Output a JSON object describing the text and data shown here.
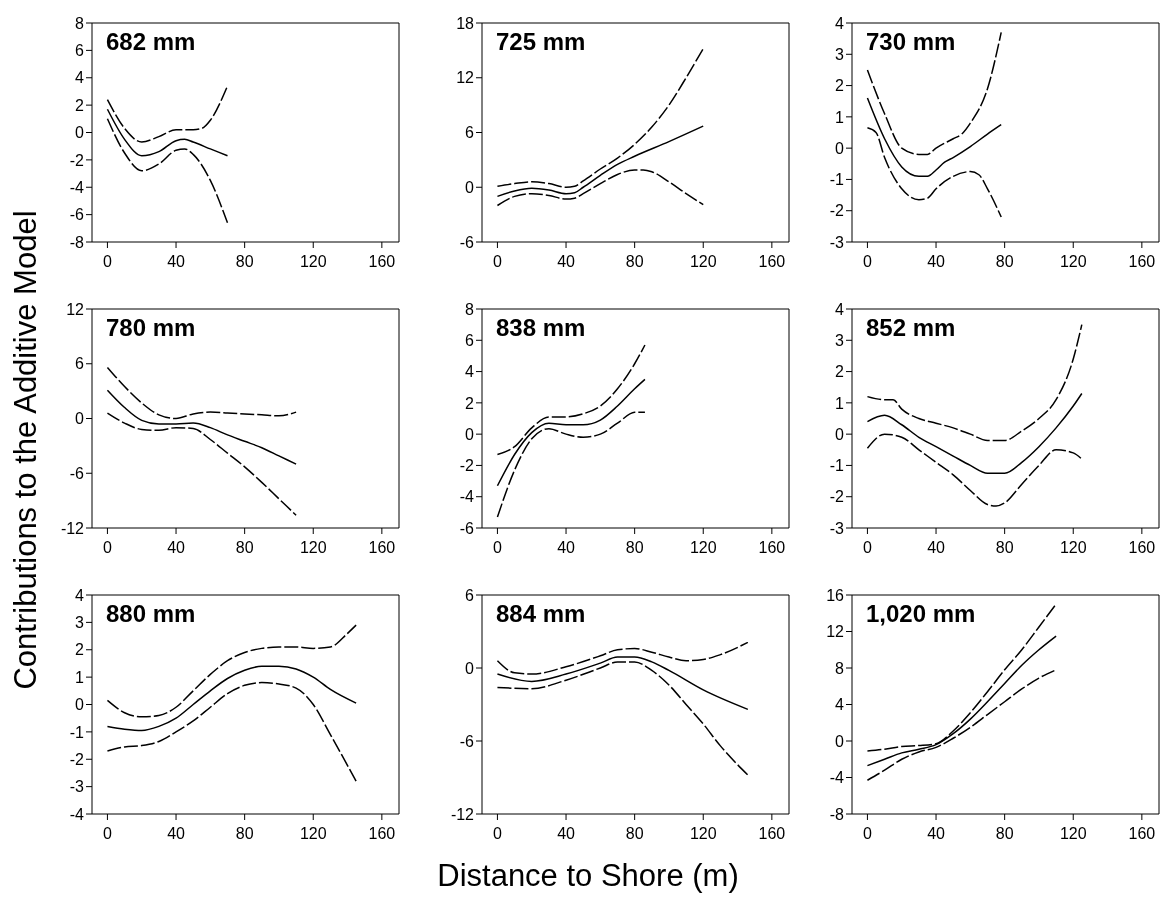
{
  "chart_data": [
    {
      "type": "line",
      "title": "682 mm",
      "xlim": [
        -9,
        170
      ],
      "xticks": [
        0,
        40,
        80,
        120,
        160
      ],
      "ylim": [
        -8,
        8
      ],
      "yticks": [
        -8,
        -6,
        -4,
        -2,
        0,
        2,
        4,
        6,
        8
      ],
      "series": [
        {
          "color": "#000000",
          "line_style": "solid",
          "x": [
            0,
            10,
            20,
            30,
            40,
            45,
            50,
            60,
            70
          ],
          "values": [
            1.7,
            -0.5,
            -1.7,
            -1.4,
            -0.6,
            -0.5,
            -0.7,
            -1.2,
            -1.7
          ]
        },
        {
          "color": "#000000",
          "line_style": "dashed",
          "x": [
            0,
            10,
            20,
            30,
            40,
            50,
            55,
            60,
            70
          ],
          "values": [
            2.4,
            0.3,
            -0.7,
            -0.3,
            0.2,
            0.2,
            0.3,
            0.9,
            3.4
          ]
        },
        {
          "color": "#000000",
          "line_style": "dashed",
          "x": [
            0,
            10,
            20,
            30,
            40,
            45,
            50,
            60,
            70
          ],
          "values": [
            1.0,
            -1.5,
            -2.8,
            -2.3,
            -1.3,
            -1.2,
            -1.6,
            -3.5,
            -6.6
          ]
        }
      ]
    },
    {
      "type": "line",
      "title": "725 mm",
      "xlim": [
        -9,
        170
      ],
      "xticks": [
        0,
        40,
        80,
        120,
        160
      ],
      "ylim": [
        -6,
        18
      ],
      "yticks": [
        -6,
        0,
        6,
        12,
        18
      ],
      "series": [
        {
          "color": "#000000",
          "line_style": "solid",
          "x": [
            0,
            10,
            20,
            30,
            40,
            45,
            50,
            60,
            70,
            80,
            100,
            120
          ],
          "values": [
            -1,
            -0.4,
            -0.1,
            -0.3,
            -0.7,
            -0.6,
            0,
            1.3,
            2.5,
            3.4,
            5,
            6.7
          ]
        },
        {
          "color": "#000000",
          "line_style": "dashed",
          "x": [
            0,
            10,
            20,
            30,
            40,
            45,
            50,
            60,
            70,
            80,
            90,
            100,
            110,
            120
          ],
          "values": [
            0.1,
            0.4,
            0.6,
            0.4,
            0,
            0.1,
            0.7,
            2,
            3.2,
            4.7,
            6.6,
            9,
            12,
            15.2
          ]
        },
        {
          "color": "#000000",
          "line_style": "dashed",
          "x": [
            0,
            10,
            20,
            30,
            40,
            45,
            50,
            60,
            70,
            80,
            85,
            90,
            100,
            110,
            120
          ],
          "values": [
            -2,
            -1,
            -0.7,
            -0.9,
            -1.3,
            -1.2,
            -0.7,
            0.4,
            1.4,
            1.9,
            1.9,
            1.7,
            0.6,
            -0.7,
            -1.9
          ]
        }
      ]
    },
    {
      "type": "line",
      "title": "730 mm",
      "xlim": [
        -9,
        170
      ],
      "xticks": [
        0,
        40,
        80,
        120,
        160
      ],
      "ylim": [
        -3,
        4
      ],
      "yticks": [
        -3,
        -2,
        -1,
        0,
        1,
        2,
        3,
        4
      ],
      "series": [
        {
          "color": "#000000",
          "line_style": "solid",
          "x": [
            0,
            10,
            20,
            30,
            35,
            40,
            45,
            50,
            60,
            70,
            78
          ],
          "values": [
            1.6,
            0.3,
            -0.6,
            -0.9,
            -0.9,
            -0.7,
            -0.45,
            -0.3,
            0.05,
            0.45,
            0.75
          ]
        },
        {
          "color": "#000000",
          "line_style": "dashed",
          "x": [
            0,
            10,
            20,
            30,
            35,
            40,
            50,
            55,
            60,
            70,
            78
          ],
          "values": [
            2.5,
            1.1,
            0,
            -0.2,
            -0.2,
            0,
            0.3,
            0.45,
            0.8,
            1.9,
            3.7
          ]
        },
        {
          "color": "#000000",
          "line_style": "dashed",
          "x": [
            0,
            5,
            10,
            20,
            30,
            35,
            40,
            50,
            60,
            65,
            70,
            78
          ],
          "values": [
            0.65,
            0.5,
            -0.3,
            -1.3,
            -1.65,
            -1.6,
            -1.3,
            -0.9,
            -0.75,
            -0.85,
            -1.3,
            -2.2
          ]
        }
      ]
    },
    {
      "type": "line",
      "title": "780 mm",
      "ylabel": "Contributions to the Additive Model",
      "xlim": [
        -9,
        170
      ],
      "xticks": [
        0,
        40,
        80,
        120,
        160
      ],
      "ylim": [
        -12,
        12
      ],
      "yticks": [
        -12,
        -6,
        0,
        6,
        12
      ],
      "series": [
        {
          "color": "#000000",
          "line_style": "solid",
          "x": [
            0,
            10,
            20,
            30,
            40,
            50,
            60,
            70,
            80,
            90,
            100,
            110
          ],
          "values": [
            3.1,
            1.2,
            -0.2,
            -0.6,
            -0.6,
            -0.5,
            -1,
            -1.8,
            -2.5,
            -3.2,
            -4.1,
            -5
          ]
        },
        {
          "color": "#000000",
          "line_style": "dashed",
          "x": [
            0,
            10,
            20,
            30,
            40,
            50,
            60,
            70,
            80,
            90,
            100,
            110
          ],
          "values": [
            5.6,
            3.5,
            1.7,
            0.4,
            0,
            0.5,
            0.7,
            0.6,
            0.5,
            0.4,
            0.3,
            0.7
          ]
        },
        {
          "color": "#000000",
          "line_style": "dashed",
          "x": [
            0,
            10,
            20,
            30,
            40,
            50,
            60,
            70,
            80,
            90,
            100,
            110
          ],
          "values": [
            0.6,
            -0.5,
            -1.2,
            -1.3,
            -1,
            -1.1,
            -2.3,
            -3.8,
            -5.3,
            -7,
            -8.8,
            -10.6
          ]
        }
      ]
    },
    {
      "type": "line",
      "title": "838 mm",
      "xlim": [
        -9,
        170
      ],
      "xticks": [
        0,
        40,
        80,
        120,
        160
      ],
      "ylim": [
        -6,
        8
      ],
      "yticks": [
        -6,
        -4,
        -2,
        0,
        2,
        4,
        6,
        8
      ],
      "series": [
        {
          "color": "#000000",
          "line_style": "solid",
          "x": [
            0,
            10,
            20,
            30,
            40,
            50,
            60,
            70,
            80,
            86
          ],
          "values": [
            -3.3,
            -1.3,
            0.1,
            0.7,
            0.6,
            0.6,
            0.9,
            1.8,
            2.9,
            3.5
          ]
        },
        {
          "color": "#000000",
          "line_style": "dashed",
          "x": [
            0,
            10,
            20,
            30,
            40,
            50,
            60,
            70,
            80,
            86
          ],
          "values": [
            -1.3,
            -0.8,
            0.4,
            1.1,
            1.1,
            1.3,
            1.8,
            2.9,
            4.5,
            5.7
          ]
        },
        {
          "color": "#000000",
          "line_style": "dashed",
          "x": [
            0,
            10,
            20,
            30,
            40,
            50,
            60,
            70,
            80,
            86
          ],
          "values": [
            -5.3,
            -2.3,
            -0.3,
            0.35,
            0,
            -0.2,
            0,
            0.7,
            1.4,
            1.4
          ]
        }
      ]
    },
    {
      "type": "line",
      "title": "852 mm",
      "xlim": [
        -9,
        170
      ],
      "xticks": [
        0,
        40,
        80,
        120,
        160
      ],
      "ylim": [
        -3,
        4
      ],
      "yticks": [
        -3,
        -2,
        -1,
        0,
        1,
        2,
        3,
        4
      ],
      "series": [
        {
          "color": "#000000",
          "line_style": "solid",
          "x": [
            0,
            10,
            20,
            30,
            40,
            50,
            60,
            70,
            80,
            90,
            100,
            110,
            120,
            125
          ],
          "values": [
            0.4,
            0.6,
            0.3,
            -0.1,
            -0.4,
            -0.7,
            -1,
            -1.25,
            -1.25,
            -0.9,
            -0.4,
            0.2,
            0.9,
            1.3
          ]
        },
        {
          "color": "#000000",
          "line_style": "dashed",
          "x": [
            0,
            10,
            15,
            20,
            30,
            40,
            50,
            60,
            70,
            80,
            90,
            100,
            110,
            120,
            125
          ],
          "values": [
            1.2,
            1.1,
            1.1,
            0.8,
            0.5,
            0.35,
            0.2,
            0,
            -0.2,
            -0.2,
            0.1,
            0.5,
            1.1,
            2.4,
            3.5
          ]
        },
        {
          "color": "#000000",
          "line_style": "dashed",
          "x": [
            0,
            10,
            20,
            30,
            40,
            50,
            60,
            70,
            75,
            80,
            90,
            100,
            110,
            120,
            125
          ],
          "values": [
            -0.45,
            0,
            -0.1,
            -0.5,
            -0.9,
            -1.3,
            -1.8,
            -2.25,
            -2.3,
            -2.2,
            -1.6,
            -1,
            -0.5,
            -0.6,
            -0.8
          ]
        }
      ]
    },
    {
      "type": "line",
      "title": "880 mm",
      "xlim": [
        -9,
        170
      ],
      "xticks": [
        0,
        40,
        80,
        120,
        160
      ],
      "ylim": [
        -4,
        4
      ],
      "yticks": [
        -4,
        -3,
        -2,
        -1,
        0,
        1,
        2,
        3,
        4
      ],
      "series": [
        {
          "color": "#000000",
          "line_style": "solid",
          "x": [
            0,
            10,
            20,
            30,
            40,
            50,
            60,
            70,
            80,
            90,
            100,
            110,
            120,
            130,
            145
          ],
          "values": [
            -0.8,
            -0.9,
            -0.95,
            -0.8,
            -0.5,
            0,
            0.5,
            0.95,
            1.25,
            1.4,
            1.4,
            1.3,
            1,
            0.55,
            0.05
          ]
        },
        {
          "color": "#000000",
          "line_style": "dashed",
          "x": [
            0,
            10,
            20,
            30,
            40,
            50,
            60,
            70,
            80,
            90,
            100,
            110,
            120,
            130,
            140,
            145
          ],
          "values": [
            0.15,
            -0.3,
            -0.45,
            -0.4,
            -0.1,
            0.5,
            1.1,
            1.6,
            1.9,
            2.05,
            2.1,
            2.1,
            2.05,
            2.1,
            2.6,
            2.9
          ]
        },
        {
          "color": "#000000",
          "line_style": "dashed",
          "x": [
            0,
            10,
            20,
            30,
            40,
            50,
            60,
            70,
            80,
            90,
            100,
            110,
            120,
            130,
            145
          ],
          "values": [
            -1.7,
            -1.55,
            -1.5,
            -1.35,
            -1.0,
            -0.6,
            -0.1,
            0.4,
            0.7,
            0.8,
            0.75,
            0.6,
            0,
            -1.1,
            -2.8
          ]
        }
      ]
    },
    {
      "type": "line",
      "title": "884 mm",
      "xlabel": "Distance to Shore (m)",
      "xlim": [
        -9,
        170
      ],
      "xticks": [
        0,
        40,
        80,
        120,
        160
      ],
      "ylim": [
        -12,
        6
      ],
      "yticks": [
        -12,
        -6,
        0,
        6
      ],
      "series": [
        {
          "color": "#000000",
          "line_style": "solid",
          "x": [
            0,
            20,
            40,
            60,
            70,
            80,
            90,
            100,
            120,
            146
          ],
          "values": [
            -0.5,
            -1.1,
            -0.5,
            0.4,
            0.9,
            0.9,
            0.5,
            -0.2,
            -1.8,
            -3.4
          ]
        },
        {
          "color": "#000000",
          "line_style": "dashed",
          "x": [
            0,
            10,
            20,
            40,
            60,
            70,
            80,
            90,
            100,
            110,
            120,
            130,
            146
          ],
          "values": [
            0.6,
            -0.4,
            -0.5,
            0.1,
            1,
            1.5,
            1.6,
            1.3,
            0.9,
            0.6,
            0.7,
            1.1,
            2.1
          ]
        },
        {
          "color": "#000000",
          "line_style": "dashed",
          "x": [
            0,
            20,
            40,
            60,
            70,
            80,
            90,
            100,
            110,
            120,
            130,
            146
          ],
          "values": [
            -1.6,
            -1.7,
            -1,
            0,
            0.5,
            0.5,
            -0.2,
            -1.4,
            -3,
            -4.6,
            -6.4,
            -8.8
          ]
        }
      ]
    },
    {
      "type": "line",
      "title": "1,020 mm",
      "xlim": [
        -9,
        170
      ],
      "xticks": [
        0,
        40,
        80,
        120,
        160
      ],
      "ylim": [
        -8,
        16
      ],
      "yticks": [
        -8,
        -4,
        0,
        4,
        8,
        12,
        16
      ],
      "series": [
        {
          "color": "#000000",
          "line_style": "solid",
          "x": [
            0,
            10,
            20,
            30,
            40,
            50,
            60,
            70,
            80,
            90,
            100,
            110
          ],
          "values": [
            -2.7,
            -2,
            -1.3,
            -0.9,
            -0.4,
            0.8,
            2.4,
            4.3,
            6.3,
            8.3,
            10,
            11.5
          ]
        },
        {
          "color": "#000000",
          "line_style": "dashed",
          "x": [
            0,
            10,
            20,
            30,
            40,
            50,
            60,
            70,
            80,
            90,
            100,
            110
          ],
          "values": [
            -1.1,
            -0.9,
            -0.6,
            -0.5,
            -0.3,
            1.1,
            3.1,
            5.4,
            7.8,
            10,
            12.5,
            15
          ]
        },
        {
          "color": "#000000",
          "line_style": "dashed",
          "x": [
            0,
            10,
            20,
            30,
            40,
            50,
            60,
            70,
            80,
            90,
            100,
            110
          ],
          "values": [
            -4.3,
            -3.2,
            -2,
            -1.2,
            -0.7,
            0.3,
            1.5,
            2.9,
            4.3,
            5.7,
            6.9,
            7.8
          ]
        }
      ]
    }
  ]
}
